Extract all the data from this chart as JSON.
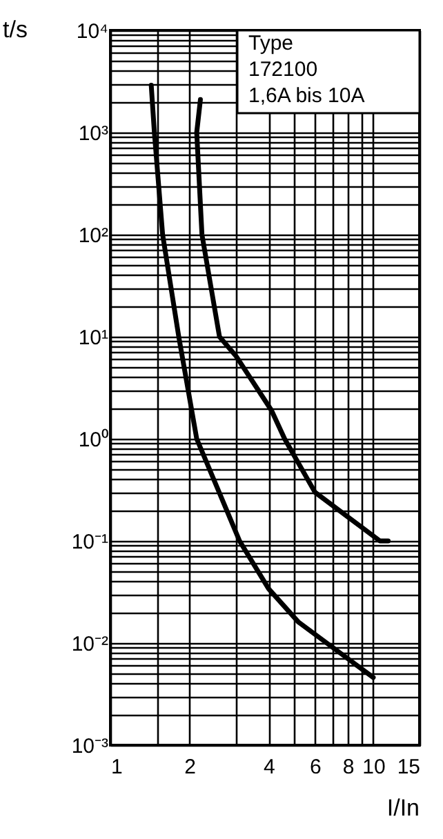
{
  "chart_data": {
    "type": "line",
    "xlabel": "I/In",
    "ylabel": "t/s",
    "log": "xy",
    "grid": true,
    "marker": "none",
    "line_style": "solid",
    "annotations": [
      "Type",
      "172100",
      "1,6A bis 10A"
    ],
    "xlim": [
      1,
      15
    ],
    "ylim": [
      0.001,
      10000
    ],
    "xticks": [
      1,
      {
        "value": 1.5,
        "label": null
      },
      2,
      {
        "value": 3,
        "label": null
      },
      4,
      {
        "value": 5,
        "label": null
      },
      6,
      {
        "value": 7,
        "label": null
      },
      8,
      {
        "value": 9,
        "label": null
      },
      10,
      15
    ],
    "yticks": [
      {
        "value": 0.001,
        "label": "10⁻³"
      },
      {
        "value": 0.002,
        "label": null
      },
      {
        "value": 0.003,
        "label": null
      },
      {
        "value": 0.004,
        "label": null
      },
      {
        "value": 0.005,
        "label": null
      },
      {
        "value": 0.006,
        "label": null
      },
      {
        "value": 0.007,
        "label": null
      },
      {
        "value": 0.008,
        "label": null
      },
      {
        "value": 0.009,
        "label": null
      },
      {
        "value": 0.01,
        "label": "10⁻²"
      },
      {
        "value": 0.02,
        "label": null
      },
      {
        "value": 0.03,
        "label": null
      },
      {
        "value": 0.04,
        "label": null
      },
      {
        "value": 0.05,
        "label": null
      },
      {
        "value": 0.06,
        "label": null
      },
      {
        "value": 0.07,
        "label": null
      },
      {
        "value": 0.08,
        "label": null
      },
      {
        "value": 0.09,
        "label": null
      },
      {
        "value": 0.1,
        "label": "10⁻¹"
      },
      {
        "value": 0.2,
        "label": null
      },
      {
        "value": 0.3,
        "label": null
      },
      {
        "value": 0.4,
        "label": null
      },
      {
        "value": 0.5,
        "label": null
      },
      {
        "value": 0.6,
        "label": null
      },
      {
        "value": 0.7,
        "label": null
      },
      {
        "value": 0.8,
        "label": null
      },
      {
        "value": 0.9,
        "label": null
      },
      {
        "value": 1,
        "label": "10⁰"
      },
      {
        "value": 2,
        "label": null
      },
      {
        "value": 3,
        "label": null
      },
      {
        "value": 4,
        "label": null
      },
      {
        "value": 5,
        "label": null
      },
      {
        "value": 6,
        "label": null
      },
      {
        "value": 7,
        "label": null
      },
      {
        "value": 8,
        "label": null
      },
      {
        "value": 9,
        "label": null
      },
      {
        "value": 10,
        "label": "10¹"
      },
      {
        "value": 20,
        "label": null
      },
      {
        "value": 30,
        "label": null
      },
      {
        "value": 40,
        "label": null
      },
      {
        "value": 50,
        "label": null
      },
      {
        "value": 60,
        "label": null
      },
      {
        "value": 70,
        "label": null
      },
      {
        "value": 80,
        "label": null
      },
      {
        "value": 90,
        "label": null
      },
      {
        "value": 100,
        "label": "10²"
      },
      {
        "value": 200,
        "label": null
      },
      {
        "value": 300,
        "label": null
      },
      {
        "value": 400,
        "label": null
      },
      {
        "value": 500,
        "label": null
      },
      {
        "value": 600,
        "label": null
      },
      {
        "value": 700,
        "label": null
      },
      {
        "value": 800,
        "label": null
      },
      {
        "value": 900,
        "label": null
      },
      {
        "value": 1000,
        "label": "10³"
      },
      {
        "value": 2000,
        "label": null
      },
      {
        "value": 3000,
        "label": null
      },
      {
        "value": 4000,
        "label": null
      },
      {
        "value": 5000,
        "label": null
      },
      {
        "value": 6000,
        "label": null
      },
      {
        "value": 7000,
        "label": null
      },
      {
        "value": 8000,
        "label": null
      },
      {
        "value": 9000,
        "label": null
      },
      {
        "value": 10000,
        "label": "10⁴"
      }
    ],
    "series": [
      {
        "color": "#000000",
        "x": [
          1.43,
          1.47,
          1.58,
          1.82,
          2.13,
          3.1,
          4,
          5.2,
          10
        ],
        "values": [
          2900,
          1000,
          100,
          10,
          1,
          0.1,
          0.034,
          0.016,
          0.0046
        ]
      },
      {
        "color": "#000000",
        "x": [
          2.2,
          2.13,
          2.23,
          2.6,
          3,
          4.1,
          4.6,
          6,
          10.6,
          11.4
        ],
        "values": [
          2100,
          1000,
          100,
          10,
          6.5,
          1.9,
          1,
          0.3,
          0.1,
          0.1
        ]
      }
    ]
  }
}
